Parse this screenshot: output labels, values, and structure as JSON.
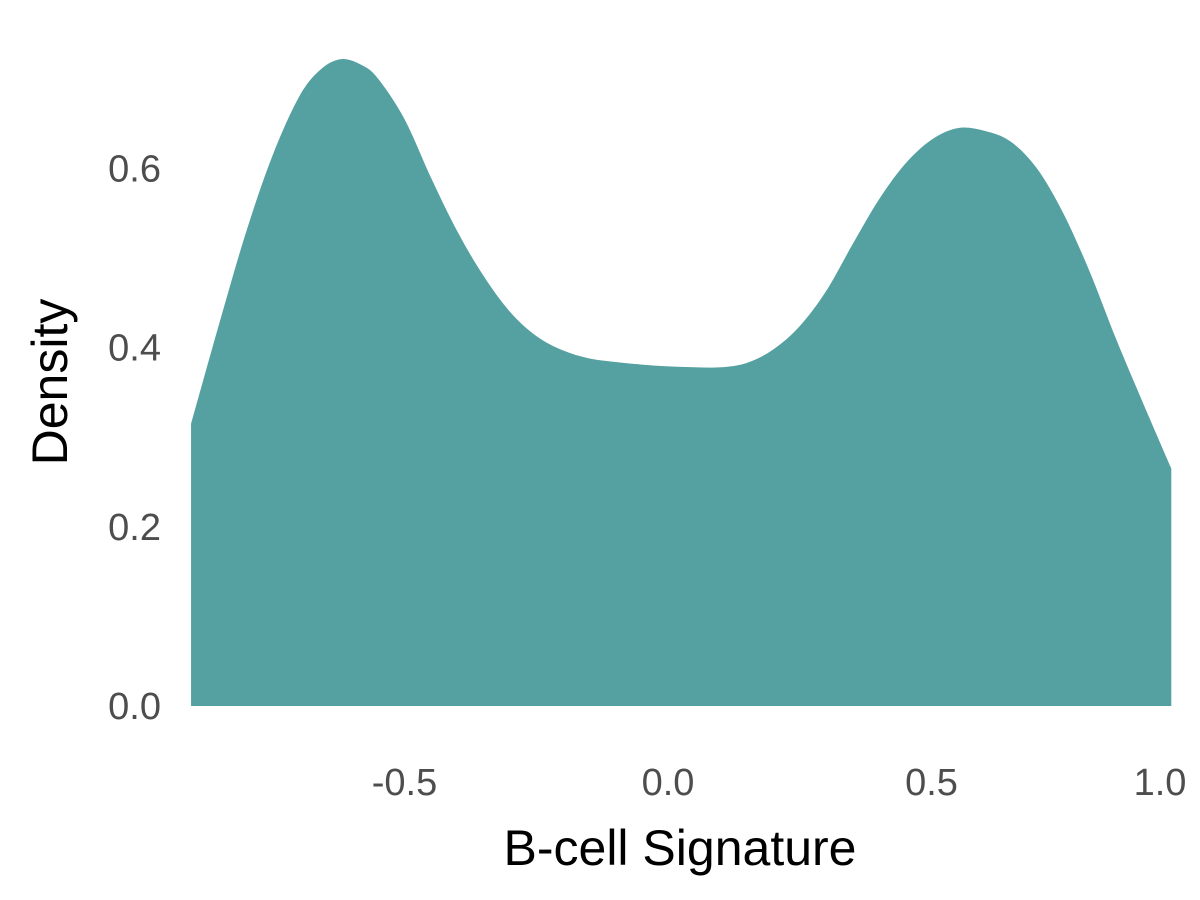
{
  "chart_data": {
    "type": "area",
    "title": "",
    "xlabel": "B-cell Signature",
    "ylabel": "Density",
    "xlim": [
      -0.92,
      1.0
    ],
    "ylim": [
      0,
      0.72
    ],
    "x_ticks": [
      -0.5,
      0.0,
      0.5,
      1.0
    ],
    "x_tick_labels": [
      "-0.5",
      "0.0",
      "0.5",
      "1.0"
    ],
    "y_ticks": [
      0.0,
      0.2,
      0.4,
      0.6
    ],
    "y_tick_labels": [
      "0.0",
      "0.2",
      "0.4",
      "0.6"
    ],
    "grid": false,
    "legend": "none",
    "fill_color": "#55a0a0",
    "series": [
      {
        "x": [
          -0.905,
          -0.85,
          -0.8,
          -0.75,
          -0.7,
          -0.66,
          -0.62,
          -0.58,
          -0.55,
          -0.5,
          -0.45,
          -0.4,
          -0.35,
          -0.3,
          -0.25,
          -0.2,
          -0.15,
          -0.1,
          -0.05,
          0.0,
          0.05,
          0.1,
          0.15,
          0.2,
          0.25,
          0.3,
          0.35,
          0.4,
          0.45,
          0.5,
          0.55,
          0.6,
          0.65,
          0.7,
          0.75,
          0.8,
          0.85,
          0.9,
          0.955
        ],
        "y": [
          0.315,
          0.43,
          0.53,
          0.615,
          0.68,
          0.71,
          0.722,
          0.715,
          0.7,
          0.655,
          0.59,
          0.53,
          0.48,
          0.44,
          0.413,
          0.397,
          0.388,
          0.384,
          0.381,
          0.379,
          0.378,
          0.378,
          0.383,
          0.398,
          0.424,
          0.463,
          0.515,
          0.565,
          0.605,
          0.632,
          0.645,
          0.642,
          0.63,
          0.6,
          0.55,
          0.485,
          0.41,
          0.34,
          0.265
        ]
      }
    ]
  }
}
